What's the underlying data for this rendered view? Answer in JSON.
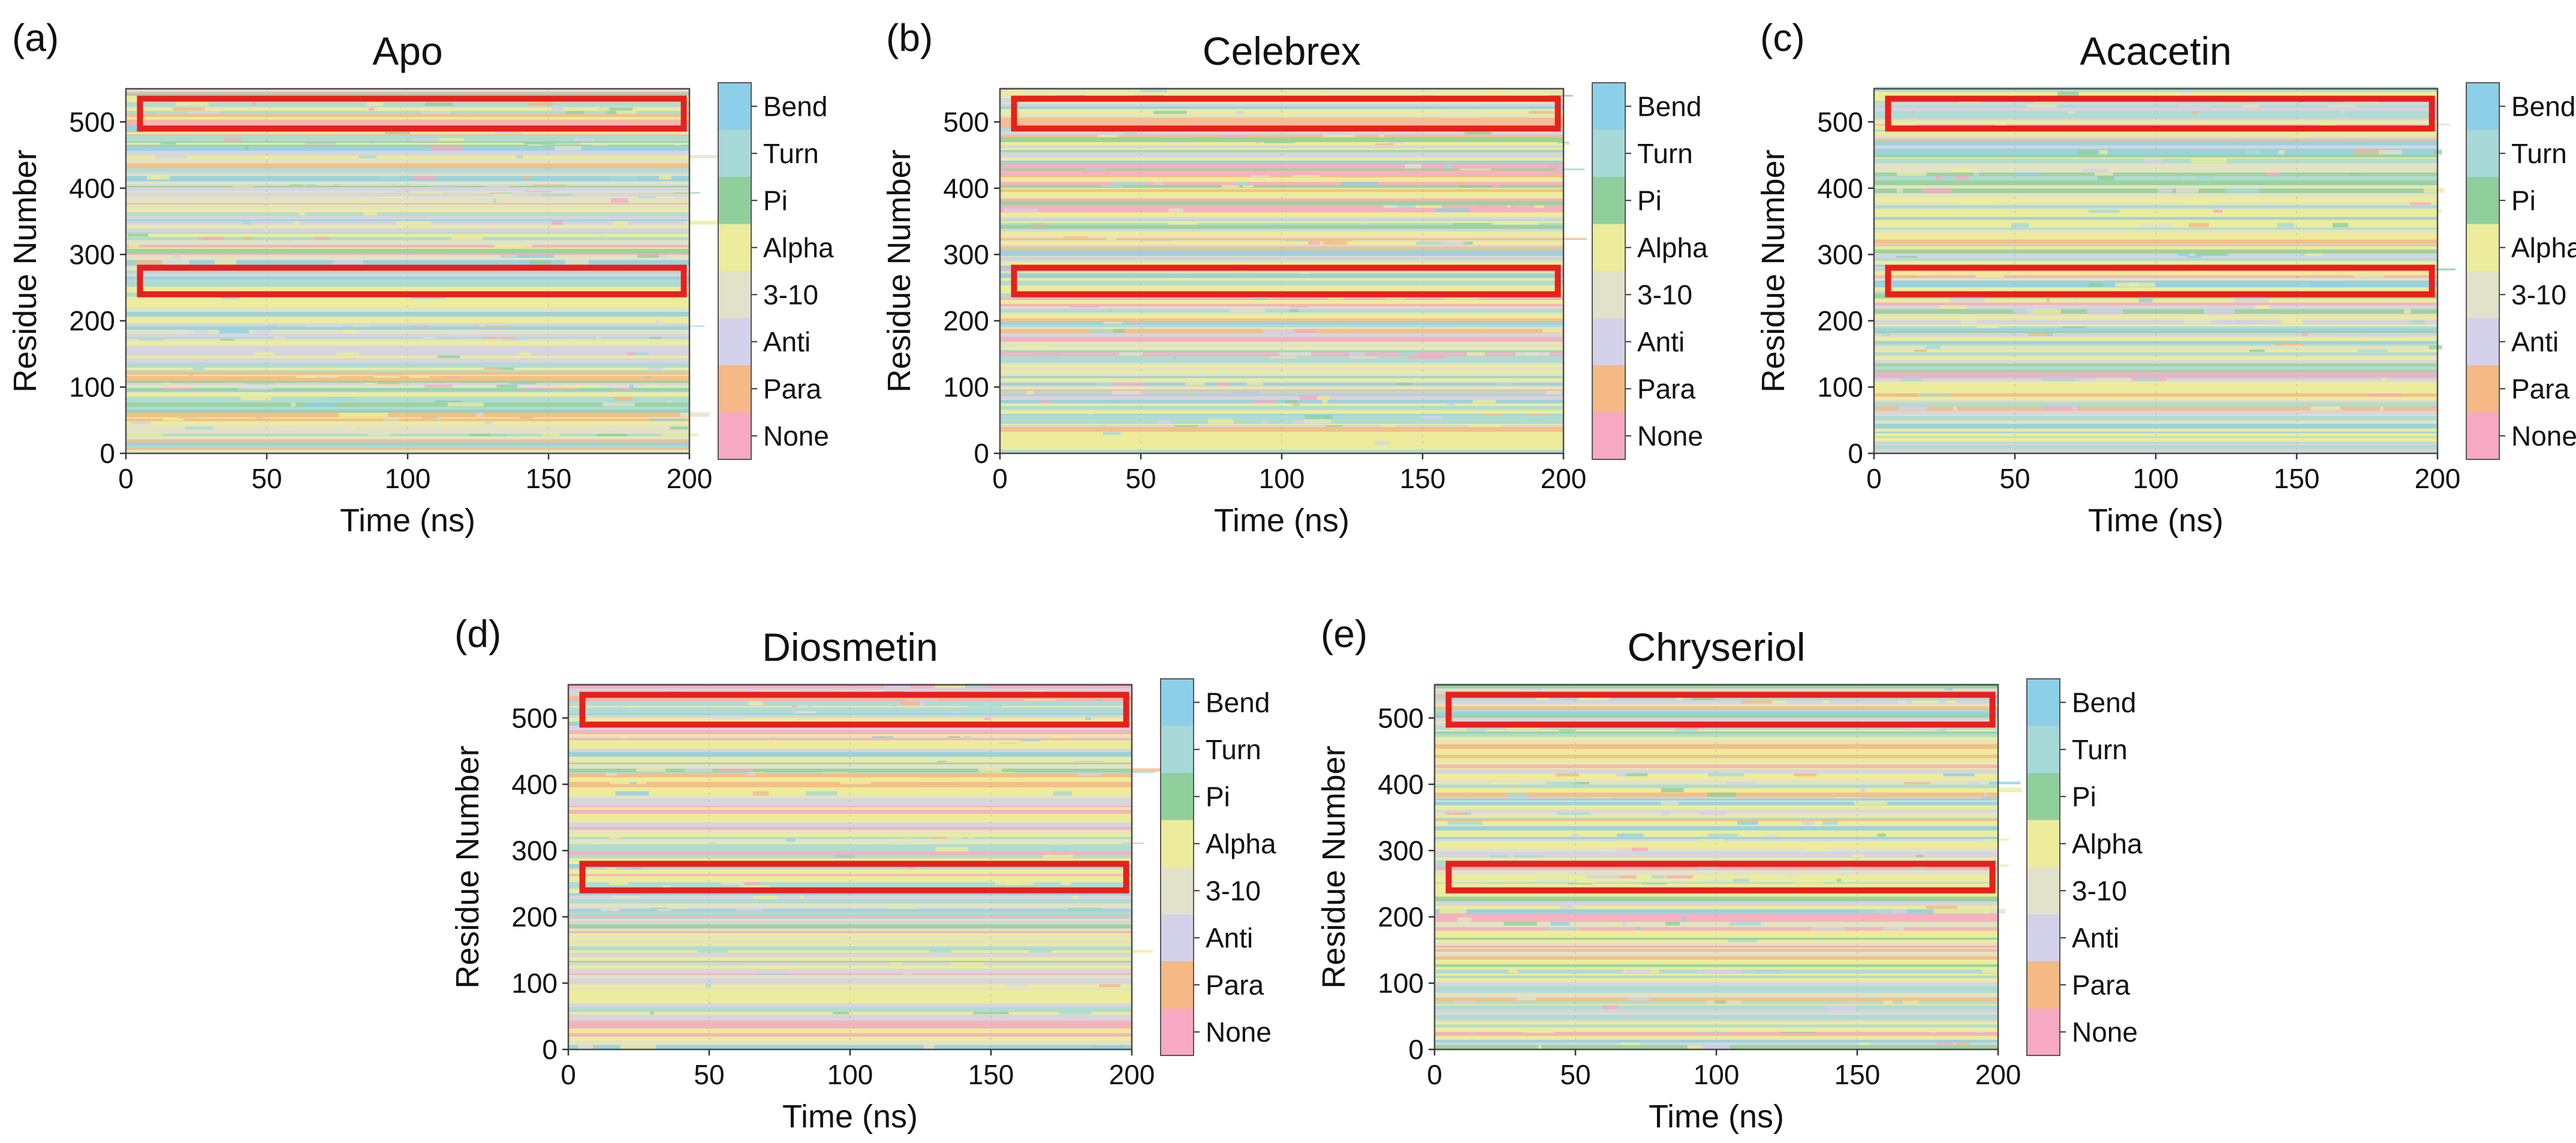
{
  "figure": {
    "state_colors": {
      "Bend": "#8ccfe9",
      "Turn": "#a7d9d9",
      "Pi": "#8fcf9c",
      "Alpha": "#ecec9c",
      "3-10": "#e2e2ca",
      "Anti": "#d4d1ea",
      "Para": "#f4b984",
      "None": "#f7a9c3"
    },
    "highlight_color": "#e8201c"
  },
  "chart_data": [
    {
      "type": "heatmap",
      "panel_label": "(a)",
      "title": "Apo",
      "xlabel": "Time (ns)",
      "ylabel": "Residue Number",
      "xlim": [
        0,
        200
      ],
      "ylim": [
        0,
        550
      ],
      "xticks": [
        "0",
        "50",
        "100",
        "150",
        "200"
      ],
      "yticks": [
        "0",
        "100",
        "200",
        "300",
        "400",
        "500"
      ],
      "legend": [
        "Bend",
        "Turn",
        "Pi",
        "Alpha",
        "3-10",
        "Anti",
        "Para",
        "None"
      ],
      "highlight_regions": [
        {
          "x": [
            5,
            198
          ],
          "y": [
            490,
            535
          ]
        },
        {
          "x": [
            5,
            198
          ],
          "y": [
            240,
            280
          ]
        }
      ]
    },
    {
      "type": "heatmap",
      "panel_label": "(b)",
      "title": "Celebrex",
      "xlabel": "Time (ns)",
      "ylabel": "Residue Number",
      "xlim": [
        0,
        200
      ],
      "ylim": [
        0,
        550
      ],
      "xticks": [
        "0",
        "50",
        "100",
        "150",
        "200"
      ],
      "yticks": [
        "0",
        "100",
        "200",
        "300",
        "400",
        "500"
      ],
      "legend": [
        "Bend",
        "Turn",
        "Pi",
        "Alpha",
        "3-10",
        "Anti",
        "Para",
        "None"
      ],
      "highlight_regions": [
        {
          "x": [
            5,
            198
          ],
          "y": [
            490,
            535
          ]
        },
        {
          "x": [
            5,
            198
          ],
          "y": [
            240,
            280
          ]
        }
      ]
    },
    {
      "type": "heatmap",
      "panel_label": "(c)",
      "title": "Acacetin",
      "xlabel": "Time (ns)",
      "ylabel": "Residue Number",
      "xlim": [
        0,
        200
      ],
      "ylim": [
        0,
        550
      ],
      "xticks": [
        "0",
        "50",
        "100",
        "150",
        "200"
      ],
      "yticks": [
        "0",
        "100",
        "200",
        "300",
        "400",
        "500"
      ],
      "legend": [
        "Bend",
        "Turn",
        "Pi",
        "Alpha",
        "3-10",
        "Anti",
        "Para",
        "None"
      ],
      "highlight_regions": [
        {
          "x": [
            5,
            198
          ],
          "y": [
            490,
            535
          ]
        },
        {
          "x": [
            5,
            198
          ],
          "y": [
            240,
            280
          ]
        }
      ]
    },
    {
      "type": "heatmap",
      "panel_label": "(d)",
      "title": "Diosmetin",
      "xlabel": "Time (ns)",
      "ylabel": "Residue Number",
      "xlim": [
        0,
        200
      ],
      "ylim": [
        0,
        550
      ],
      "xticks": [
        "0",
        "50",
        "100",
        "150",
        "200"
      ],
      "yticks": [
        "0",
        "100",
        "200",
        "300",
        "400",
        "500"
      ],
      "legend": [
        "Bend",
        "Turn",
        "Pi",
        "Alpha",
        "3-10",
        "Anti",
        "Para",
        "None"
      ],
      "highlight_regions": [
        {
          "x": [
            5,
            198
          ],
          "y": [
            490,
            535
          ]
        },
        {
          "x": [
            5,
            198
          ],
          "y": [
            240,
            280
          ]
        }
      ]
    },
    {
      "type": "heatmap",
      "panel_label": "(e)",
      "title": "Chryseriol",
      "xlabel": "Time (ns)",
      "ylabel": "Residue Number",
      "xlim": [
        0,
        200
      ],
      "ylim": [
        0,
        550
      ],
      "xticks": [
        "0",
        "50",
        "100",
        "150",
        "200"
      ],
      "yticks": [
        "0",
        "100",
        "200",
        "300",
        "400",
        "500"
      ],
      "legend": [
        "Bend",
        "Turn",
        "Pi",
        "Alpha",
        "3-10",
        "Anti",
        "Para",
        "None"
      ],
      "highlight_regions": [
        {
          "x": [
            5,
            198
          ],
          "y": [
            490,
            535
          ]
        },
        {
          "x": [
            5,
            198
          ],
          "y": [
            240,
            280
          ]
        }
      ]
    }
  ]
}
